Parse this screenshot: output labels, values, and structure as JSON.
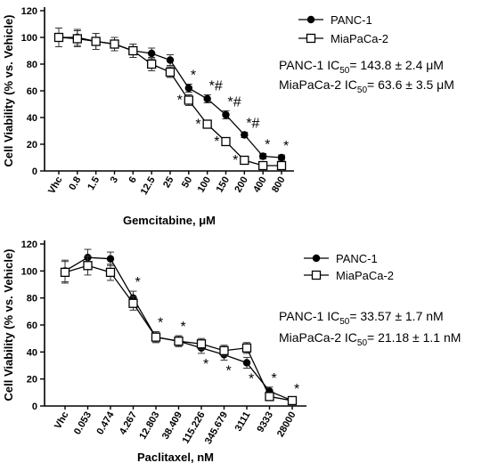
{
  "chart_data": [
    {
      "type": "line",
      "ylabel": "Cell Viability (% vs. Vehicle)",
      "xlabel": "Gemcitabine, μM",
      "categories": [
        "Vhc",
        "0.8",
        "1.5",
        "3",
        "6",
        "12.5",
        "25",
        "50",
        "100",
        "150",
        "200",
        "400",
        "800"
      ],
      "ylim": [
        0,
        120
      ],
      "yticks": [
        0,
        20,
        40,
        60,
        80,
        100,
        120
      ],
      "legend_position": "top-right",
      "series": [
        {
          "name": "PANC-1",
          "marker": "filled-circle",
          "values": [
            100,
            100,
            97,
            95,
            90,
            88,
            83,
            62,
            54,
            42,
            27,
            11,
            10
          ],
          "errors": [
            7,
            6,
            6,
            5,
            5,
            4,
            4,
            3,
            3,
            3,
            2,
            2,
            2
          ],
          "significance": [
            "",
            "",
            "",
            "",
            "",
            "",
            "",
            "*",
            "*#",
            "*#",
            "*#",
            "*",
            "*"
          ]
        },
        {
          "name": "MiaPaCa-2",
          "marker": "open-square",
          "values": [
            100,
            99,
            97,
            95,
            90,
            80,
            74,
            53,
            35,
            22,
            8,
            4,
            4
          ],
          "errors": [
            7,
            6,
            6,
            5,
            5,
            5,
            4,
            4,
            3,
            3,
            2,
            2,
            2
          ],
          "significance": [
            "",
            "",
            "",
            "",
            "",
            "",
            "",
            "*",
            "*",
            "*",
            "*",
            "",
            ""
          ]
        }
      ],
      "annotations": [
        {
          "prefix": "PANC-1 IC",
          "sub": "50",
          "value": "= 143.8 ± 2.4 μM"
        },
        {
          "prefix": "MiaPaCa-2 IC",
          "sub": "50",
          "value": "= 63.6 ± 3.5 μM"
        }
      ]
    },
    {
      "type": "line",
      "ylabel": "Cell Viability (% vs. Vehicle)",
      "xlabel": "Paclitaxel, nM",
      "categories": [
        "Vhc",
        "0.053",
        "0.474",
        "4.267",
        "12.803",
        "38.409",
        "115.226",
        "345.679",
        "3111",
        "9333",
        "28000"
      ],
      "ylim": [
        0,
        120
      ],
      "yticks": [
        0,
        20,
        40,
        60,
        80,
        100,
        120
      ],
      "legend_position": "top-right",
      "series": [
        {
          "name": "PANC-1",
          "marker": "filled-circle",
          "values": [
            100,
            110,
            109,
            80,
            51,
            48,
            43,
            38,
            32,
            11,
            4
          ],
          "errors": [
            8,
            6,
            5,
            5,
            4,
            4,
            4,
            4,
            4,
            3,
            2
          ],
          "significance": [
            "",
            "",
            "",
            "*",
            "*",
            "*",
            "*",
            "*",
            "*",
            "*",
            "*"
          ]
        },
        {
          "name": "MiaPaCa-2",
          "marker": "open-square",
          "values": [
            99,
            104,
            99,
            76,
            51,
            48,
            46,
            41,
            43,
            7,
            4
          ],
          "errors": [
            8,
            7,
            6,
            5,
            4,
            4,
            4,
            4,
            4,
            3,
            2
          ],
          "significance": [
            "",
            "",
            "",
            "",
            "",
            "",
            "",
            "",
            "",
            "",
            ""
          ]
        }
      ],
      "annotations": [
        {
          "prefix": "PANC-1 IC",
          "sub": "50",
          "value": "= 33.57 ± 1.7 nM"
        },
        {
          "prefix": "MiaPaCa-2 IC",
          "sub": "50",
          "value": "= 21.18 ± 1.1 nM"
        }
      ]
    }
  ]
}
